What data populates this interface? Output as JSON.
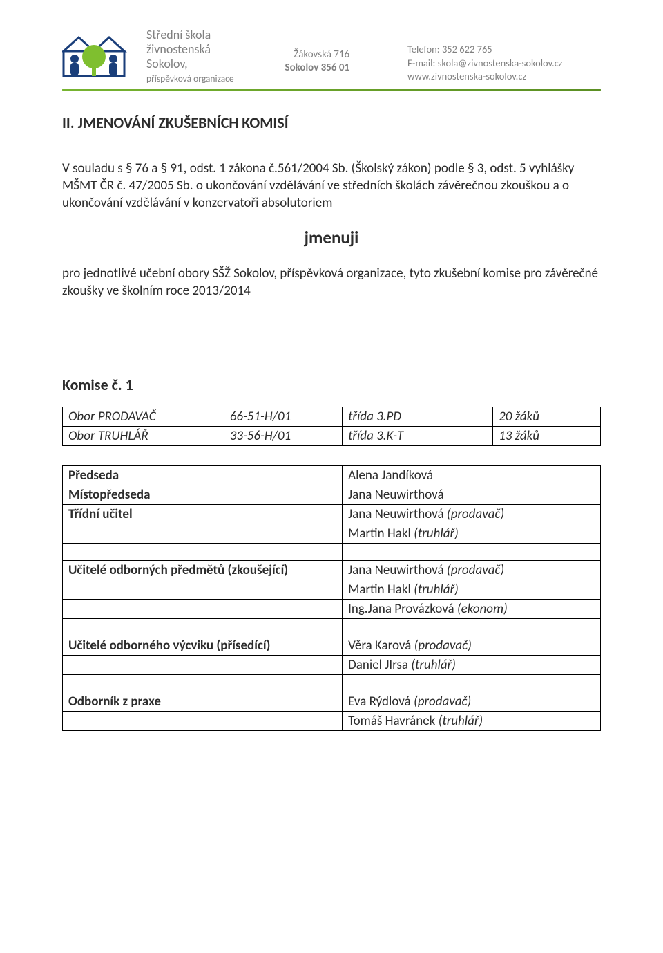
{
  "header": {
    "school": {
      "line1": "Střední škola",
      "line2": "živnostenská",
      "line3": "Sokolov,",
      "line4": "příspěvková organizace"
    },
    "address": {
      "street": "Žákovská 716",
      "city_zip": "Sokolov 356 01"
    },
    "contact": {
      "phone_label": "Telefon:",
      "phone": "352 622 765",
      "email_label": "E-mail:",
      "email": "skola@zivnostenska-sokolov.cz",
      "web": "www.zivnostenska-sokolov.cz"
    },
    "rule_color_start": "#77b430",
    "rule_color_end": "#5b8f23"
  },
  "body": {
    "title": "II. JMENOVÁNÍ ZKUŠEBNÍCH KOMISÍ",
    "para1": "V souladu s § 76 a § 91, odst. 1 zákona č.561/2004 Sb. (Školský zákon) podle § 3, odst. 5 vyhlášky MŠMT ČR č. 47/2005 Sb. o ukončování vzdělávání ve středních školách závěrečnou zkouškou a o ukončování vzdělávání v konzervatoři absolutoriem",
    "jmenuji": "jmenuji",
    "para2": "pro jednotlivé učební obory SŠŽ Sokolov, příspěvková organizace, tyto zkušební komise pro závěrečné zkoušky ve školním roce 2013/2014",
    "komise_heading": "Komise č. 1"
  },
  "obory": {
    "rows": [
      {
        "a": "Obor PRODAVAČ",
        "b": "66-51-H/01",
        "c": "třída 3.PD",
        "d": "20 žáků"
      },
      {
        "a": "Obor TRUHLÁŘ",
        "b": "33-56-H/01",
        "c": "třída 3.K-T",
        "d": "13 žáků"
      }
    ]
  },
  "roles": {
    "rows": [
      {
        "left": "Předseda",
        "right": "Alena Jandíková"
      },
      {
        "left": "Místopředseda",
        "right": "Jana Neuwirthová"
      },
      {
        "left": "Třídní učitel",
        "right": "Jana Neuwirthová <span class=\"ital\">(prodavač)</span>"
      },
      {
        "left": "",
        "right": "Martin Hakl <span class=\"ital\">(truhlář)</span>"
      },
      {
        "left": "",
        "right": "",
        "empty": true
      },
      {
        "left": "Učitelé odborných předmětů (zkoušející)",
        "right": "Jana Neuwirthová <span class=\"ital\">(prodavač)</span>"
      },
      {
        "left": "",
        "right": "Martin Hakl <span class=\"ital\">(truhlář)</span>"
      },
      {
        "left": "",
        "right": "Ing.Jana Provázková <span class=\"ital\">(ekonom)</span>"
      },
      {
        "left": "",
        "right": "",
        "empty": true
      },
      {
        "left": "Učitelé odborného výcviku (přísedící)",
        "right": "Věra Karová <span class=\"ital\">(prodavač)</span>"
      },
      {
        "left": "",
        "right": "Daniel JIrsa <span class=\"ital\">(truhlář)</span>"
      },
      {
        "left": "",
        "right": "",
        "empty": true
      },
      {
        "left": "Odborník z praxe",
        "right": "Eva Rýdlová <span class=\"ital\">(prodavač)</span>"
      },
      {
        "left": "",
        "right": "Tomáš Havránek <span class=\"ital\">(truhlář)</span>"
      }
    ]
  }
}
